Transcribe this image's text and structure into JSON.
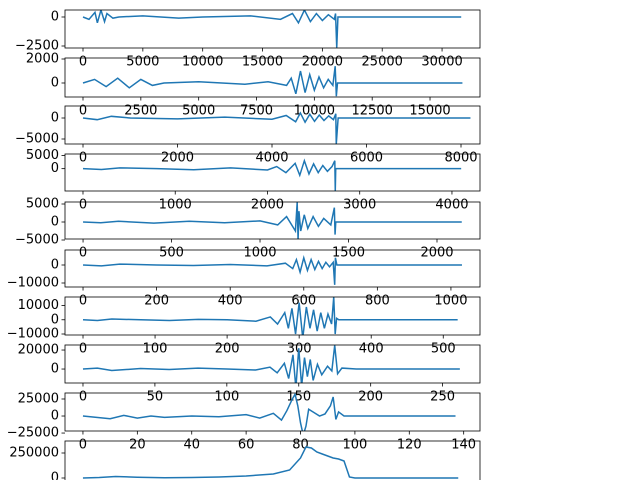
{
  "chart_data": [
    {
      "type": "line",
      "color": "#1f77b4",
      "x": [
        0,
        500,
        1000,
        1200,
        1500,
        1800,
        2000,
        2500,
        3000,
        5000,
        8000,
        10000,
        14000,
        16500,
        17500,
        18000,
        18500,
        19000,
        19500,
        20000,
        20500,
        21000,
        21100,
        21200,
        21300,
        25000,
        31600
      ],
      "values": [
        0,
        -200,
        400,
        -500,
        600,
        -400,
        300,
        -100,
        0,
        100,
        -100,
        0,
        100,
        -200,
        300,
        -500,
        600,
        -400,
        300,
        -300,
        200,
        -200,
        300,
        -2650,
        0,
        0,
        0
      ],
      "xlim": [
        -1504,
        33170
      ],
      "ylim": [
        -2672,
        603
      ],
      "xticks": [
        0,
        5000,
        10000,
        15000,
        20000,
        25000,
        30000
      ],
      "yticks": [
        0,
        {
          "value": -2500,
          "label": "−2500"
        }
      ]
    },
    {
      "type": "line",
      "color": "#1f77b4",
      "x": [
        0,
        500,
        1000,
        1500,
        2000,
        2500,
        3000,
        3500,
        5000,
        7000,
        8000,
        8800,
        9000,
        9200,
        9400,
        9600,
        9800,
        10000,
        10200,
        10400,
        10600,
        10800,
        10900,
        10950,
        11000,
        12000,
        14000,
        16400
      ],
      "values": [
        0,
        300,
        -300,
        400,
        -400,
        300,
        -200,
        0,
        100,
        -100,
        100,
        -200,
        400,
        -900,
        1000,
        -800,
        700,
        -600,
        500,
        -400,
        300,
        -200,
        1400,
        -1100,
        0,
        0,
        0,
        0
      ],
      "xlim": [
        -778,
        17160
      ],
      "ylim": [
        -1167,
        2083
      ],
      "xticks": [
        0,
        2500,
        5000,
        7500,
        10000,
        12500,
        15000
      ],
      "yticks": [
        0,
        2000
      ]
    },
    {
      "type": "line",
      "color": "#1f77b4",
      "x": [
        0,
        300,
        600,
        1000,
        2000,
        3000,
        4000,
        4300,
        4500,
        4600,
        4700,
        4800,
        4900,
        5000,
        5100,
        5200,
        5300,
        5350,
        5360,
        5400,
        6000,
        7000,
        8200
      ],
      "values": [
        0,
        -400,
        400,
        0,
        -200,
        200,
        -300,
        600,
        -900,
        1200,
        -1000,
        900,
        -800,
        700,
        -600,
        500,
        -400,
        1000,
        -6200,
        0,
        0,
        0,
        0
      ],
      "xlim": [
        -381,
        8402
      ],
      "ylim": [
        -6190,
        2857
      ],
      "xticks": [
        0,
        2000,
        4000,
        6000,
        8000
      ],
      "yticks": [
        {
          "value": -5000,
          "label": "−5000"
        },
        0
      ]
    },
    {
      "type": "line",
      "color": "#1f77b4",
      "x": [
        0,
        200,
        400,
        800,
        1200,
        1600,
        2000,
        2100,
        2200,
        2300,
        2350,
        2400,
        2450,
        2500,
        2550,
        2600,
        2650,
        2700,
        2730,
        2735,
        2740,
        2800,
        3200,
        4100
      ],
      "values": [
        0,
        -300,
        300,
        0,
        -400,
        300,
        -500,
        800,
        -1500,
        2000,
        -2500,
        3000,
        -2000,
        1800,
        -1500,
        1200,
        -1000,
        800,
        3000,
        -8400,
        0,
        0,
        0,
        0
      ],
      "xlim": [
        -195,
        4304
      ],
      "ylim": [
        -8421,
        5526
      ],
      "xticks": [
        0,
        1000,
        2000,
        3000,
        4000
      ],
      "yticks": [
        0,
        5000
      ]
    },
    {
      "type": "line",
      "color": "#1f77b4",
      "x": [
        0,
        100,
        200,
        400,
        600,
        800,
        1000,
        1100,
        1150,
        1200,
        1210,
        1215,
        1220,
        1230,
        1250,
        1270,
        1300,
        1330,
        1360,
        1400,
        1420,
        1424,
        1428,
        1440,
        1600,
        2000,
        2140
      ],
      "values": [
        0,
        -200,
        200,
        -300,
        200,
        -200,
        300,
        -800,
        1500,
        -2500,
        5500,
        -5000,
        3000,
        -2500,
        2000,
        -1800,
        1500,
        -1200,
        1000,
        -800,
        4000,
        -3500,
        0,
        0,
        0,
        0,
        0
      ],
      "xlim": [
        -102,
        2243
      ],
      "ylim": [
        -4722,
        5556
      ],
      "xticks": [
        0,
        500,
        1000,
        1500,
        2000
      ],
      "yticks": [
        {
          "value": -5000,
          "label": "−5000"
        },
        0,
        5000
      ]
    },
    {
      "type": "line",
      "color": "#1f77b4",
      "x": [
        0,
        50,
        100,
        200,
        300,
        400,
        500,
        550,
        570,
        580,
        590,
        600,
        610,
        620,
        630,
        640,
        650,
        660,
        670,
        680,
        684,
        686,
        690,
        700,
        800,
        900,
        1030
      ],
      "values": [
        0,
        -500,
        500,
        0,
        -300,
        300,
        -500,
        1000,
        -2000,
        3000,
        -4000,
        4000,
        -3000,
        3000,
        -2500,
        2000,
        -2000,
        1500,
        -1000,
        1500,
        -11000,
        4000,
        0,
        0,
        0,
        0,
        0
      ],
      "xlim": [
        -49,
        1079
      ],
      "ylim": [
        -12222,
        8333
      ],
      "xticks": [
        0,
        200,
        400,
        600,
        800,
        1000
      ],
      "yticks": [
        {
          "value": -10000,
          "label": "−10000"
        },
        0
      ]
    },
    {
      "type": "line",
      "color": "#1f77b4",
      "x": [
        0,
        20,
        40,
        80,
        120,
        160,
        200,
        240,
        260,
        270,
        280,
        285,
        290,
        295,
        300,
        305,
        310,
        315,
        320,
        325,
        330,
        335,
        340,
        345,
        348,
        350,
        352,
        355,
        360,
        400,
        450,
        520
      ],
      "values": [
        0,
        -500,
        500,
        0,
        -500,
        300,
        0,
        -1000,
        2000,
        -3000,
        5000,
        -6000,
        8000,
        -10000,
        12000,
        -13000,
        9000,
        -6000,
        7000,
        -8000,
        5000,
        -6000,
        4000,
        -3000,
        16000,
        -10000,
        1000,
        0,
        0,
        0,
        0,
        0
      ],
      "xlim": [
        -25,
        551
      ],
      "ylim": [
        -10700,
        16000
      ],
      "xticks": [
        0,
        100,
        200,
        300,
        400,
        500
      ],
      "yticks": [
        {
          "value": -10000,
          "label": "−10000"
        },
        0,
        10000
      ]
    },
    {
      "type": "line",
      "color": "#1f77b4",
      "x": [
        0,
        10,
        20,
        40,
        60,
        80,
        100,
        120,
        130,
        135,
        140,
        143,
        146,
        148,
        150,
        152,
        154,
        156,
        158,
        160,
        163,
        166,
        170,
        173,
        175,
        177,
        180,
        190,
        200,
        230,
        262
      ],
      "values": [
        0,
        1000,
        -1500,
        500,
        -500,
        1000,
        0,
        -1000,
        2000,
        -4000,
        6000,
        -10000,
        15000,
        -20000,
        22000,
        -18000,
        12000,
        -8000,
        10000,
        -12000,
        5000,
        -6000,
        3000,
        -2000,
        25000,
        -5000,
        1000,
        0,
        0,
        0,
        0
      ],
      "xlim": [
        -12.5,
        276
      ],
      "ylim": [
        -14700,
        25300
      ],
      "xticks": [
        0,
        50,
        100,
        150,
        200,
        250
      ],
      "yticks": [
        0,
        20000
      ]
    },
    {
      "type": "line",
      "color": "#1f77b4",
      "x": [
        0,
        5,
        10,
        15,
        20,
        25,
        30,
        40,
        50,
        60,
        65,
        70,
        73,
        75,
        77,
        78,
        79,
        80,
        81,
        82,
        83,
        85,
        87,
        89,
        91,
        92,
        93,
        94,
        96,
        98,
        100,
        110,
        120,
        137
      ],
      "values": [
        0,
        -2000,
        -4000,
        1000,
        -3000,
        0,
        -2000,
        0,
        -1000,
        2000,
        -3000,
        4000,
        -6000,
        8000,
        25000,
        32000,
        15000,
        -10000,
        -28000,
        -15000,
        10000,
        5000,
        0,
        3000,
        15000,
        28000,
        -5000,
        6000,
        0,
        0,
        0,
        0,
        0,
        0
      ],
      "xlim": [
        -6.6,
        146
      ],
      "ylim": [
        -22000,
        33800
      ],
      "xticks": [
        0,
        20,
        40,
        60,
        80,
        100,
        120,
        140
      ],
      "yticks": [
        {
          "value": -25000,
          "label": "−25000"
        },
        0,
        25000
      ]
    },
    {
      "type": "line",
      "color": "#1f77b4",
      "x": [
        0,
        3,
        6,
        10,
        15,
        20,
        25,
        30,
        35,
        38,
        40,
        41,
        42,
        43,
        44,
        45,
        46,
        47,
        48,
        49,
        50,
        55,
        60,
        69
      ],
      "values": [
        0,
        5000,
        15000,
        8000,
        3000,
        5000,
        10000,
        20000,
        40000,
        80000,
        200000,
        310000,
        300000,
        260000,
        240000,
        220000,
        200000,
        190000,
        170000,
        10000,
        0,
        0,
        0,
        0
      ],
      "xlim": [
        -3.3,
        73
      ],
      "ylim": [
        -20000,
        370000
      ],
      "yticks": [
        0,
        250000
      ]
    }
  ]
}
